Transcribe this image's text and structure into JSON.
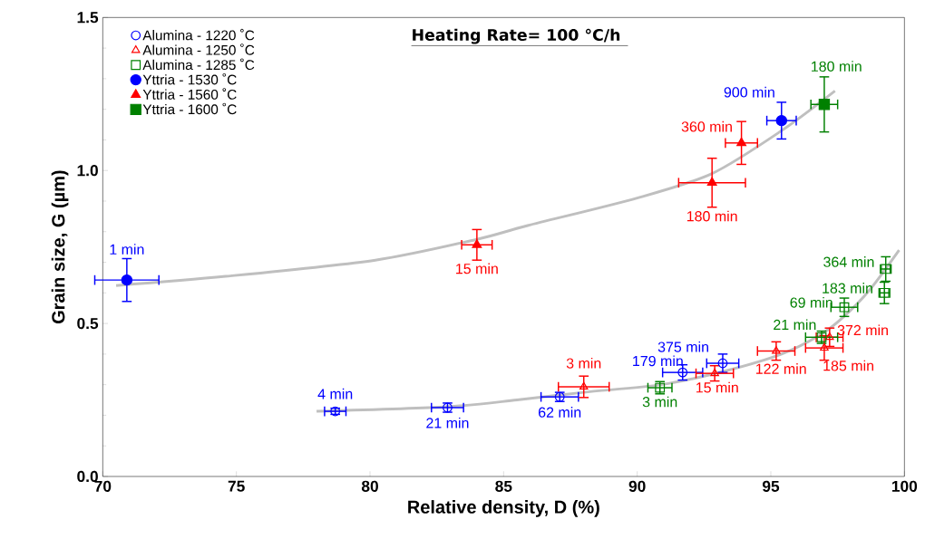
{
  "chart_data": {
    "type": "scatter",
    "title": "Heating Rate= 100 °C/h",
    "xlabel": "Relative density, D (%)",
    "ylabel": "Grain size, G (µm)",
    "xlim": [
      70,
      100
    ],
    "xticks": [
      70,
      75,
      80,
      85,
      90,
      95,
      100
    ],
    "ylim": [
      0,
      1.5
    ],
    "yticks": [
      {
        "value": 0,
        "label": "0.0"
      },
      {
        "value": 0.5,
        "label": "0.5"
      },
      {
        "value": 1.0,
        "label": "1.0"
      },
      {
        "value": 1.5,
        "label": "1.5"
      }
    ],
    "grid": false,
    "legend": "top left",
    "series": [
      {
        "type": "line",
        "color": "#bfbfbf",
        "marker": "none",
        "x": [
          70.5,
          74.6,
          80.2,
          84.0,
          85.9,
          90.0,
          92.8,
          95.4,
          97.4
        ],
        "values": [
          0.624,
          0.654,
          0.707,
          0.775,
          0.82,
          0.91,
          0.99,
          1.13,
          1.26
        ]
      },
      {
        "type": "line",
        "color": "#bfbfbf",
        "marker": "none",
        "x": [
          78.0,
          82.9,
          85.5,
          88.0,
          90.9,
          93.3,
          95.4,
          96.8,
          97.7,
          98.7,
          99.8
        ],
        "values": [
          0.213,
          0.228,
          0.25,
          0.275,
          0.3,
          0.345,
          0.4,
          0.46,
          0.52,
          0.61,
          0.74
        ]
      },
      {
        "name": "Alumina - 1220 ˚C",
        "color": "#0000ff",
        "marker": "circle",
        "x": [
          78.7,
          82.9,
          87.1,
          91.7,
          93.2
        ],
        "values": [
          0.213,
          0.225,
          0.26,
          0.34,
          0.37
        ],
        "xerrors": [
          0.4,
          0.6,
          0.7,
          0.75,
          0.6
        ],
        "errors": [
          0.01,
          0.015,
          0.015,
          0.025,
          0.03
        ]
      },
      {
        "name": "Alumina - 1250 ˚C",
        "color": "#ff0000",
        "marker": "triangle",
        "x": [
          88.0,
          92.9,
          95.2,
          97.0,
          97.2
        ],
        "values": [
          0.293,
          0.337,
          0.41,
          0.42,
          0.455
        ],
        "xerrors": [
          0.95,
          0.7,
          0.7,
          0.7,
          0.5
        ],
        "errors": [
          0.035,
          0.025,
          0.03,
          0.04,
          0.03
        ]
      },
      {
        "name": "Alumina - 1285 ˚C",
        "color": "#008000",
        "marker": "square",
        "x": [
          90.85,
          96.9,
          97.75,
          99.25,
          99.3
        ],
        "values": [
          0.29,
          0.455,
          0.553,
          0.6,
          0.678
        ],
        "xerrors": [
          0.45,
          0.6,
          0.5,
          0.2,
          0.2
        ],
        "errors": [
          0.02,
          0.02,
          0.03,
          0.035,
          0.04
        ]
      },
      {
        "name": "Yttria - 1530 ˚C",
        "color": "#0000ff",
        "marker": "circle",
        "x": [
          70.9,
          95.4
        ],
        "values": [
          0.642,
          1.163
        ],
        "xerrors": [
          1.2,
          0.55
        ],
        "errors": [
          0.07,
          0.06
        ]
      },
      {
        "name": "Yttria - 1560 ˚C",
        "color": "#ff0000",
        "marker": "triangle",
        "x": [
          84.0,
          92.8,
          93.9
        ],
        "values": [
          0.757,
          0.96,
          1.09
        ],
        "xerrors": [
          0.57,
          1.25,
          0.6
        ],
        "errors": [
          0.05,
          0.08,
          0.07
        ]
      },
      {
        "name": "Yttria - 1600 ˚C",
        "color": "#008000",
        "marker": "square",
        "x": [
          97.0
        ],
        "values": [
          1.216
        ],
        "xerrors": [
          0.5
        ],
        "errors": [
          0.09
        ]
      }
    ],
    "annotations": [
      {
        "text": "4 min",
        "x": 78.7,
        "y": 0.213
      },
      {
        "text": "21 min",
        "x": 82.9,
        "y": 0.225
      },
      {
        "text": "62 min",
        "x": 87.1,
        "y": 0.26
      },
      {
        "text": "179 min",
        "x": 91.7,
        "y": 0.34
      },
      {
        "text": "375 min",
        "x": 93.2,
        "y": 0.37
      },
      {
        "text": "3 min",
        "x": 88.0,
        "y": 0.293
      },
      {
        "text": "15 min",
        "x": 92.9,
        "y": 0.337
      },
      {
        "text": "122 min",
        "x": 95.2,
        "y": 0.41
      },
      {
        "text": "185 min",
        "x": 97.0,
        "y": 0.42
      },
      {
        "text": "372 min",
        "x": 97.2,
        "y": 0.455
      },
      {
        "text": "3 min",
        "x": 90.85,
        "y": 0.29
      },
      {
        "text": "21 min",
        "x": 96.9,
        "y": 0.455
      },
      {
        "text": "69 min",
        "x": 97.75,
        "y": 0.553
      },
      {
        "text": "183 min",
        "x": 99.25,
        "y": 0.6
      },
      {
        "text": "364 min",
        "x": 99.3,
        "y": 0.678
      },
      {
        "text": "1 min",
        "x": 70.9,
        "y": 0.642
      },
      {
        "text": "900 min",
        "x": 95.4,
        "y": 1.163
      },
      {
        "text": "15 min",
        "x": 84.0,
        "y": 0.757
      },
      {
        "text": "180 min",
        "x": 92.8,
        "y": 0.96
      },
      {
        "text": "360 min",
        "x": 93.9,
        "y": 1.09
      },
      {
        "text": "180 min",
        "x": 97.0,
        "y": 1.216
      }
    ]
  }
}
